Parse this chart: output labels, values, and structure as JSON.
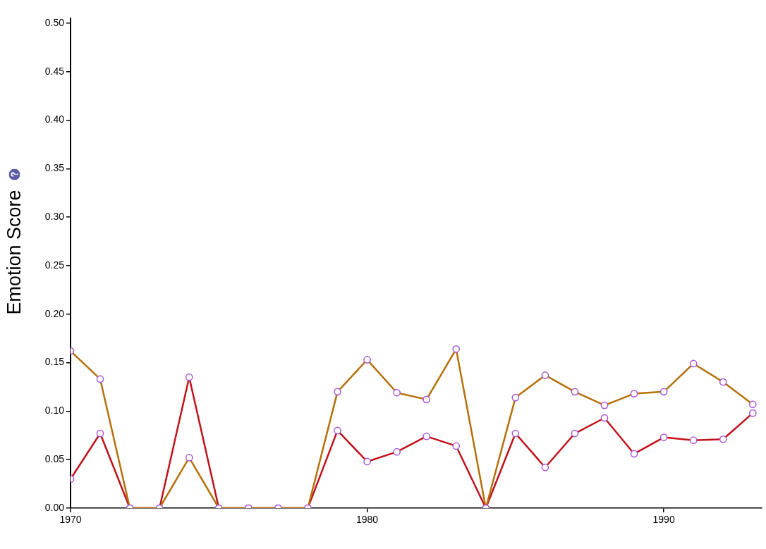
{
  "chart_data": {
    "type": "line",
    "ylabel": "Emotion Score",
    "marker": "circle",
    "line_style": "solid",
    "x": [
      1970,
      1971,
      1972,
      1973,
      1974,
      1975,
      1976,
      1977,
      1978,
      1979,
      1980,
      1981,
      1982,
      1983,
      1984,
      1985,
      1986,
      1987,
      1988,
      1989,
      1990,
      1991,
      1992,
      1993
    ],
    "series": [
      {
        "color": "#b5700b",
        "values": [
          0.162,
          0.133,
          0,
          0,
          0.052,
          0,
          0,
          0,
          0,
          0.12,
          0.153,
          0.119,
          0.112,
          0.164,
          0,
          0.114,
          0.137,
          0.12,
          0.106,
          0.118,
          0.12,
          0.149,
          0.13,
          0.107
        ]
      },
      {
        "color": "#c1121b",
        "values": [
          0.03,
          0.077,
          0,
          0,
          0.135,
          0,
          0,
          0,
          0,
          0.08,
          0.048,
          0.058,
          0.074,
          0.064,
          0,
          0.077,
          0.042,
          0.077,
          0.093,
          0.056,
          0.073,
          0.07,
          0.071,
          0.098
        ]
      }
    ],
    "xlim": [
      1970,
      1993.3
    ],
    "xticks": [
      1970,
      1980,
      1990
    ],
    "ylim": [
      0,
      0.505
    ],
    "yticks": [
      {
        "value": 0,
        "label": "0.00"
      },
      {
        "value": 0.05,
        "label": "0.05"
      },
      {
        "value": 0.1,
        "label": "0.10"
      },
      {
        "value": 0.15,
        "label": "0.15"
      },
      {
        "value": 0.2,
        "label": "0.20"
      },
      {
        "value": 0.25,
        "label": "0.25"
      },
      {
        "value": 0.3,
        "label": "0.30"
      },
      {
        "value": 0.35,
        "label": "0.35"
      },
      {
        "value": 0.4,
        "label": "0.40"
      },
      {
        "value": 0.45,
        "label": "0.45"
      },
      {
        "value": 0.5,
        "label": "0.50"
      }
    ]
  }
}
